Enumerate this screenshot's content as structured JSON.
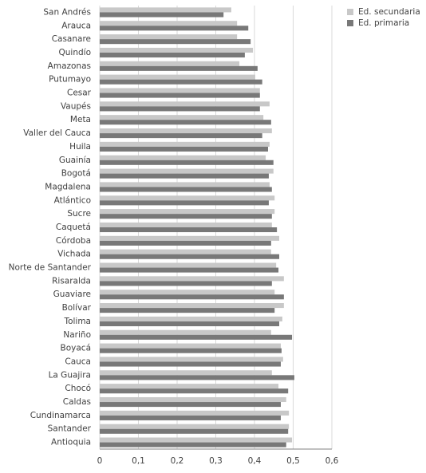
{
  "chart_data": {
    "type": "hbar",
    "categories": [
      "San Andrés",
      "Arauca",
      "Casanare",
      "Quindío",
      "Amazonas",
      "Putumayo",
      "Cesar",
      "Vaupés",
      "Meta",
      "Valler del Cauca",
      "Huila",
      "Guainía",
      "Bogotá",
      "Magdalena",
      "Atlántico",
      "Sucre",
      "Caquetá",
      "Córdoba",
      "Vichada",
      "Norte de Santander",
      "Risaralda",
      "Guaviare",
      "Bolívar",
      "Tolima",
      "Nariño",
      "Boyacá",
      "Cauca",
      "La Guajira",
      "Chocó",
      "Caldas",
      "Cundinamarca",
      "Santander",
      "Antioquia"
    ],
    "series": [
      {
        "name": "Ed. secundaria",
        "color": "#c8c8c8",
        "values": [
          0.34,
          0.355,
          0.355,
          0.396,
          0.361,
          0.402,
          0.414,
          0.439,
          0.423,
          0.445,
          0.439,
          0.429,
          0.449,
          0.439,
          0.452,
          0.452,
          0.445,
          0.464,
          0.443,
          0.456,
          0.476,
          0.452,
          0.476,
          0.472,
          0.443,
          0.468,
          0.474,
          0.445,
          0.462,
          0.482,
          0.489,
          0.489,
          0.497
        ]
      },
      {
        "name": "Ed. primaria",
        "color": "#787878",
        "values": [
          0.32,
          0.384,
          0.39,
          0.375,
          0.408,
          0.42,
          0.414,
          0.414,
          0.443,
          0.42,
          0.435,
          0.449,
          0.437,
          0.445,
          0.437,
          0.445,
          0.458,
          0.443,
          0.464,
          0.462,
          0.445,
          0.476,
          0.452,
          0.464,
          0.497,
          0.47,
          0.468,
          0.503,
          0.487,
          0.468,
          0.468,
          0.487,
          0.482
        ]
      }
    ],
    "xlim": [
      0,
      0.6
    ],
    "xticks": [
      0,
      {
        "value": 0.1,
        "label": "0,1"
      },
      {
        "value": 0.2,
        "label": "0,2"
      },
      {
        "value": 0.3,
        "label": "0,3"
      },
      {
        "value": 0.4,
        "label": "0,4"
      },
      {
        "value": 0.5,
        "label": "0,5"
      },
      {
        "value": 0.6,
        "label": "0,6"
      }
    ],
    "grid": true,
    "legend": "top-right"
  }
}
